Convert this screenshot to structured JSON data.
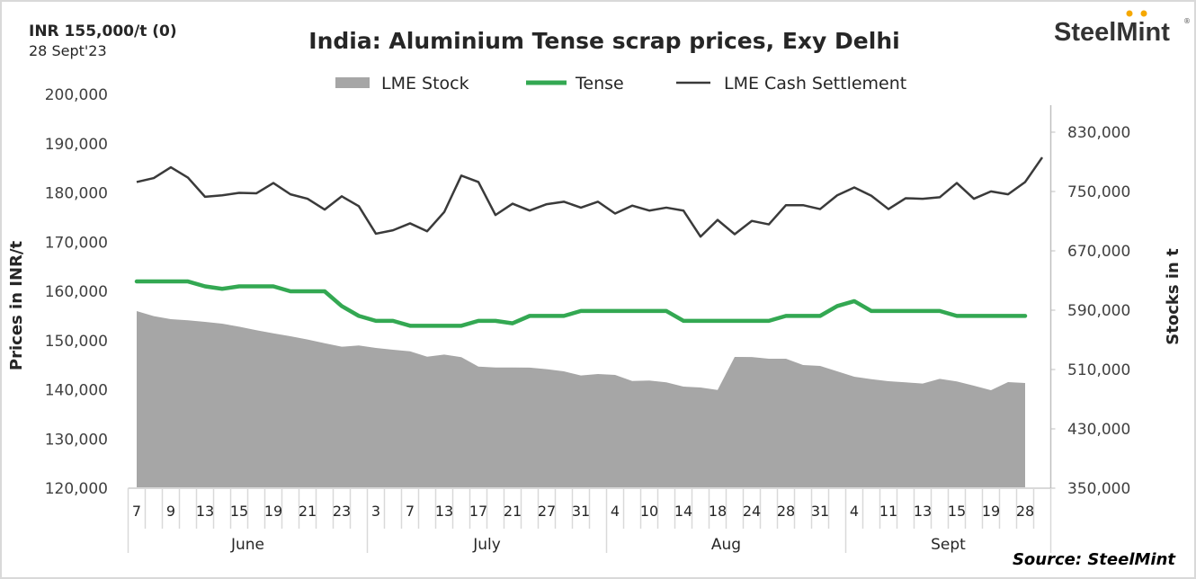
{
  "header": {
    "price_label": "INR 155,000/t (0)",
    "date_label": "28 Sept'23",
    "logo_text": "SteelMint",
    "logo_mark": "®",
    "source": "Source: SteelMint"
  },
  "colors": {
    "stock": "#a6a6a6",
    "tense": "#33a852",
    "cash": "#3a3a3a",
    "logo_dots": "#f5a800"
  },
  "chart_data": {
    "type": "line+area",
    "title": "India: Aluminium Tense scrap prices, Exy Delhi",
    "ylabel": "Prices in INR/t",
    "y2label": "Stocks in t",
    "ylim": [
      120000,
      200000
    ],
    "y_ticks": [
      "120,000",
      "130,000",
      "140,000",
      "150,000",
      "160,000",
      "170,000",
      "180,000",
      "190,000",
      "200,000"
    ],
    "y2lim": [
      350000,
      830000
    ],
    "y2_ticks": [
      "350,000",
      "430,000",
      "510,000",
      "590,000",
      "670,000",
      "750,000",
      "830,000"
    ],
    "legend": [
      "LME Stock",
      "Tense",
      "LME Cash Settlement"
    ],
    "legend_position": "top",
    "grid": false,
    "x_tick_labels": [
      "7",
      "",
      "9",
      "",
      "13",
      "",
      "15",
      "",
      "19",
      "",
      "21",
      "",
      "23",
      "",
      "3",
      "",
      "7",
      "",
      "13",
      "",
      "17",
      "",
      "21",
      "",
      "27",
      "",
      "31",
      "",
      "4",
      "",
      "10",
      "",
      "14",
      "",
      "18",
      "",
      "24",
      "",
      "28",
      "",
      "31",
      "",
      "4",
      "",
      "11",
      "",
      "13",
      "",
      "15",
      "",
      "19",
      "",
      "28",
      ""
    ],
    "months": [
      {
        "label": "June",
        "start": 0,
        "end": 14
      },
      {
        "label": "July",
        "start": 14,
        "end": 28
      },
      {
        "label": "Aug",
        "start": 28,
        "end": 42
      },
      {
        "label": "Sept",
        "start": 42,
        "end": 54
      }
    ],
    "series": [
      {
        "name": "LME Stock",
        "type": "area",
        "axis": "right",
        "values": [
          588800,
          581900,
          577900,
          576300,
          574200,
          571800,
          567800,
          563000,
          558800,
          554800,
          550400,
          545500,
          540700,
          542400,
          539100,
          536700,
          534600,
          527300,
          530200,
          526600,
          514000,
          512800,
          512800,
          512600,
          510400,
          507600,
          501900,
          503900,
          502700,
          494600,
          495100,
          492700,
          487000,
          485800,
          482500,
          527000,
          526800,
          524500,
          524500,
          516100,
          514800,
          507600,
          500300,
          497000,
          494200,
          492700,
          491000,
          497500,
          493900,
          488200,
          482100,
          493000,
          491800
        ]
      },
      {
        "name": "Tense",
        "type": "line",
        "axis": "left",
        "values": [
          162000,
          162000,
          162000,
          162000,
          161000,
          160500,
          161000,
          161000,
          161000,
          160000,
          160000,
          160000,
          157000,
          155000,
          154000,
          154000,
          153000,
          153000,
          153000,
          153000,
          154000,
          154000,
          153500,
          155000,
          155000,
          155000,
          156000,
          156000,
          156000,
          156000,
          156000,
          156000,
          154000,
          154000,
          154000,
          154000,
          154000,
          154000,
          155000,
          155000,
          155000,
          157000,
          158000,
          156000,
          156000,
          156000,
          156000,
          156000,
          155000,
          155000,
          155000,
          155000,
          155000
        ]
      },
      {
        "name": "LME Cash Settlement",
        "type": "line",
        "axis": "left",
        "values": [
          182200,
          183000,
          185200,
          183100,
          179200,
          179500,
          180000,
          179900,
          182000,
          179700,
          178800,
          176600,
          179300,
          177300,
          171700,
          172400,
          173800,
          172200,
          176100,
          183500,
          182200,
          175500,
          177800,
          176400,
          177700,
          178200,
          177000,
          178200,
          175800,
          177400,
          176400,
          177000,
          176400,
          171100,
          174500,
          171600,
          174300,
          173600,
          177500,
          177500,
          176700,
          179500,
          181100,
          179400,
          176700,
          178900,
          178800,
          179100,
          182000,
          178800,
          180300,
          179700,
          182200,
          187200
        ]
      }
    ]
  }
}
